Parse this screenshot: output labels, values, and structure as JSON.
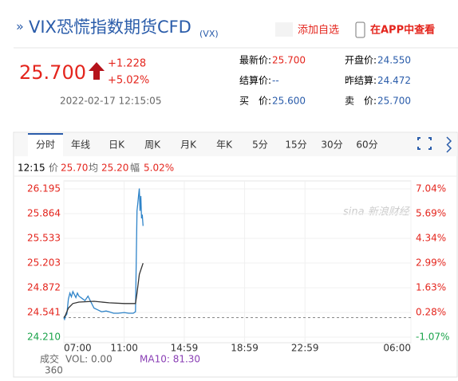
{
  "header": {
    "title": "VIX恐慌指数期货CFD",
    "code": "(VX)",
    "add_watchlist": "添加自选",
    "open_app": "在APP中查看"
  },
  "quote": {
    "price": "25.700",
    "change": "+1.228",
    "change_pct": "+5.02%",
    "time": "2022-02-17 12:15:05",
    "fields": [
      {
        "label": "最新价:",
        "value": "25.700"
      },
      {
        "label": "开盘价:",
        "value": "24.550"
      },
      {
        "label": "结算价:",
        "value": "--"
      },
      {
        "label": "昨结算:",
        "value": "24.472"
      },
      {
        "label": "买　价:",
        "value": "25.600"
      },
      {
        "label": "卖　价:",
        "value": "25.700"
      }
    ]
  },
  "tabs": [
    "分时",
    "年线",
    "日K",
    "周K",
    "月K",
    "年K",
    "5分",
    "15分",
    "30分",
    "60分"
  ],
  "info": {
    "time": "12:15",
    "price_label": "价",
    "price": "25.70",
    "avg_label": "均",
    "avg": "25.20",
    "amp_label": "幅",
    "amp": "5.02%"
  },
  "watermark": "sina 新浪财经",
  "volume": {
    "label": "成交",
    "vol": "VOL: 0.00",
    "ma10": "MA10: 81.30",
    "max": "360"
  },
  "chart_data": {
    "type": "line",
    "grid": true,
    "baseline": 24.472,
    "xlim": [
      7,
      30
    ],
    "xticks": [
      {
        "value": 7,
        "label": "07:00"
      },
      {
        "value": 11,
        "label": "11:00"
      },
      {
        "value": 14.98,
        "label": "14:59"
      },
      {
        "value": 18.98,
        "label": "18:59"
      },
      {
        "value": 22.98,
        "label": "22:59"
      },
      {
        "value": 30,
        "label": "06:00"
      }
    ],
    "ylim": [
      24.21,
      26.195
    ],
    "yticks": [
      {
        "value": 24.21,
        "label": "24.210"
      },
      24.541,
      24.872,
      25.203,
      25.533,
      25.864,
      26.195
    ],
    "y2lim": [
      -1.07,
      7.04
    ],
    "y2ticks": [
      {
        "value": -1.07,
        "label": "-1.07%"
      },
      {
        "value": 0.28,
        "label": "0.28%"
      },
      {
        "value": 1.63,
        "label": "1.63%"
      },
      {
        "value": 2.99,
        "label": "2.99%"
      },
      {
        "value": 4.34,
        "label": "4.34%"
      },
      {
        "value": 5.69,
        "label": "5.69%"
      },
      {
        "value": 7.04,
        "label": "7.04%"
      }
    ],
    "series": [
      {
        "color": "#2f84c9",
        "x": [
          7.0,
          7.05,
          7.1,
          7.2,
          7.3,
          7.4,
          7.5,
          7.6,
          7.7,
          7.8,
          7.9,
          8.0,
          8.2,
          8.4,
          8.6,
          8.8,
          9.0,
          9.2,
          9.5,
          9.8,
          10.0,
          10.3,
          10.6,
          11.0,
          11.3,
          11.6,
          11.75,
          11.85,
          11.9,
          11.95,
          12.0,
          12.05,
          12.1,
          12.15,
          12.2,
          12.25
        ],
        "values": [
          24.47,
          24.45,
          24.49,
          24.52,
          24.72,
          24.8,
          24.75,
          24.82,
          24.78,
          24.74,
          24.8,
          24.76,
          24.73,
          24.7,
          24.76,
          24.68,
          24.6,
          24.58,
          24.55,
          24.56,
          24.55,
          24.53,
          24.53,
          24.54,
          24.53,
          24.53,
          24.55,
          25.9,
          26.0,
          26.1,
          26.2,
          25.9,
          26.1,
          25.8,
          25.85,
          25.7
        ]
      },
      {
        "color": "#333333",
        "x": [
          7.0,
          7.1,
          7.3,
          7.6,
          8.0,
          9.0,
          10.0,
          11.0,
          11.75,
          11.85,
          12.0,
          12.25
        ],
        "values": [
          24.47,
          24.5,
          24.6,
          24.66,
          24.68,
          24.69,
          24.67,
          24.66,
          24.66,
          24.8,
          25.05,
          25.2
        ]
      }
    ]
  }
}
